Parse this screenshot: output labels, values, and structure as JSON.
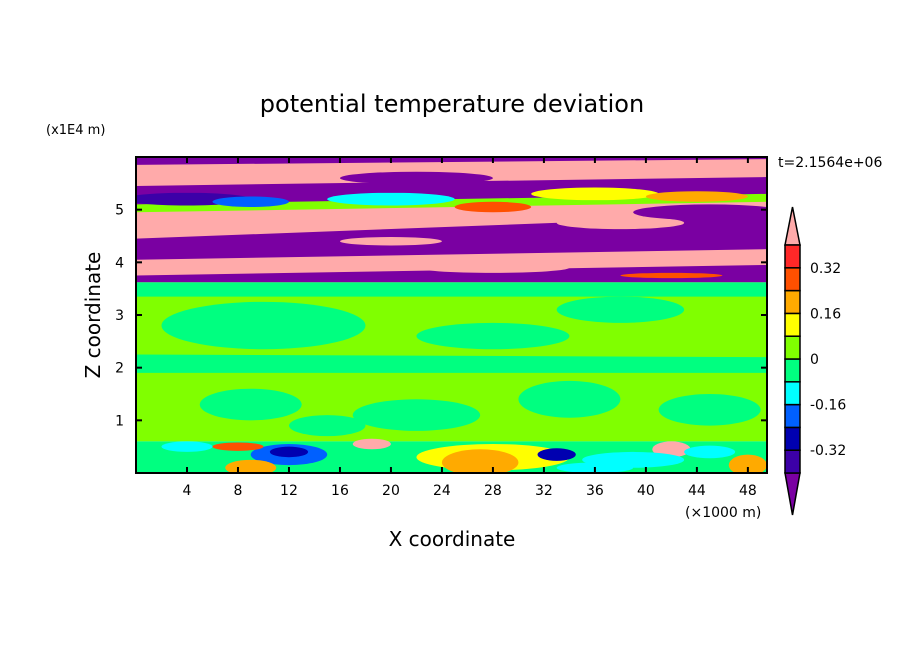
{
  "chart_data": {
    "type": "heatmap",
    "title": "potential temperature deviation",
    "xlabel": "X coordinate",
    "ylabel": "Z coordinate",
    "x_unit_label": "(×1000 m)",
    "y_unit_label": "(x1E4 m)",
    "time_label": "t=2.1564e+06",
    "xlim": [
      0,
      49.5
    ],
    "ylim": [
      0,
      6
    ],
    "xticks": [
      4,
      8,
      12,
      16,
      20,
      24,
      28,
      32,
      36,
      40,
      44,
      48
    ],
    "xtick_labels": [
      "4",
      "8",
      "12",
      "16",
      "20",
      "24",
      "28",
      "32",
      "36",
      "40",
      "44",
      "48"
    ],
    "yticks": [
      1,
      2,
      3,
      4,
      5
    ],
    "ytick_labels": [
      "1",
      "2",
      "3",
      "4",
      "5"
    ],
    "levels": [
      -0.4,
      -0.32,
      -0.24,
      -0.16,
      -0.08,
      0,
      0.08,
      0.16,
      0.24,
      0.32,
      0.4
    ],
    "level_colors": [
      "#7a00a2",
      "#3c00a8",
      "#0000b0",
      "#0060ff",
      "#00ffff",
      "#00ff80",
      "#80ff00",
      "#ffff00",
      "#ffaa00",
      "#ff5000",
      "#ff2828",
      "#ffaaaa"
    ],
    "colorbar_labels": [
      {
        "value": 0.32,
        "label": "0.32"
      },
      {
        "value": 0.16,
        "label": "0.16"
      },
      {
        "value": 0,
        "label": "0"
      },
      {
        "value": -0.16,
        "label": "-0.16"
      },
      {
        "value": -0.32,
        "label": "-0.32"
      }
    ],
    "bands": [
      {
        "name": "upper-layer-base",
        "z_left": [
          3.62,
          6.0
        ],
        "z_right": [
          3.62,
          6.0
        ],
        "value": -0.45
      },
      {
        "name": "pink-band-top",
        "z_left": [
          5.45,
          5.85
        ],
        "z_right": [
          5.62,
          5.96
        ],
        "value": 0.45
      },
      {
        "name": "mixed-band",
        "z_left": [
          4.9,
          5.1
        ],
        "z_right": [
          5.0,
          5.3
        ],
        "value": 0.05
      },
      {
        "name": "pink-band-mid",
        "z_left": [
          4.45,
          4.95
        ],
        "z_right": [
          4.9,
          5.15
        ],
        "value": 0.45
      },
      {
        "name": "pink-band-low",
        "z_left": [
          3.75,
          4.05
        ],
        "z_right": [
          3.95,
          4.25
        ],
        "value": 0.45
      },
      {
        "name": "middle-layer",
        "z_left": [
          0.6,
          3.62
        ],
        "z_right": [
          0.6,
          3.62
        ],
        "value": 0.04
      },
      {
        "name": "middle-top-strip",
        "z_left": [
          3.35,
          3.62
        ],
        "z_right": [
          3.35,
          3.62
        ],
        "value": -0.04
      },
      {
        "name": "middle-lower-strip",
        "z_left": [
          1.9,
          2.25
        ],
        "z_right": [
          1.9,
          2.2
        ],
        "value": -0.04
      },
      {
        "name": "bottom-layer",
        "z_left": [
          0,
          0.6
        ],
        "z_right": [
          0,
          0.6
        ],
        "value": -0.04
      }
    ],
    "patches": [
      {
        "x": 10,
        "z": 2.8,
        "rx": 8,
        "rz": 0.45,
        "value": -0.04
      },
      {
        "x": 28,
        "z": 2.6,
        "rx": 6,
        "rz": 0.25,
        "value": -0.04
      },
      {
        "x": 38,
        "z": 3.1,
        "rx": 5,
        "rz": 0.25,
        "value": -0.04
      },
      {
        "x": 9,
        "z": 1.3,
        "rx": 4,
        "rz": 0.3,
        "value": -0.04
      },
      {
        "x": 22,
        "z": 1.1,
        "rx": 5,
        "rz": 0.3,
        "value": -0.04
      },
      {
        "x": 34,
        "z": 1.4,
        "rx": 4,
        "rz": 0.35,
        "value": -0.04
      },
      {
        "x": 45,
        "z": 1.2,
        "rx": 4,
        "rz": 0.3,
        "value": -0.04
      },
      {
        "x": 15,
        "z": 0.9,
        "rx": 3,
        "rz": 0.2,
        "value": -0.04
      },
      {
        "x": 4,
        "z": 5.2,
        "rx": 5,
        "rz": 0.12,
        "value": -0.35
      },
      {
        "x": 9,
        "z": 5.15,
        "rx": 3,
        "rz": 0.1,
        "value": -0.2
      },
      {
        "x": 20,
        "z": 5.2,
        "rx": 5,
        "rz": 0.12,
        "value": -0.12
      },
      {
        "x": 28,
        "z": 5.05,
        "rx": 3,
        "rz": 0.1,
        "value": 0.28
      },
      {
        "x": 36,
        "z": 5.3,
        "rx": 5,
        "rz": 0.12,
        "value": 0.1
      },
      {
        "x": 44,
        "z": 5.25,
        "rx": 4,
        "rz": 0.1,
        "value": 0.2
      },
      {
        "x": 38,
        "z": 4.75,
        "rx": 5,
        "rz": 0.12,
        "value": 0.45
      },
      {
        "x": 45,
        "z": 4.95,
        "rx": 6,
        "rz": 0.15,
        "value": -0.45
      },
      {
        "x": 22,
        "z": 5.6,
        "rx": 6,
        "rz": 0.12,
        "value": -0.45
      },
      {
        "x": 28,
        "z": 3.9,
        "rx": 6,
        "rz": 0.1,
        "value": 0.45
      },
      {
        "x": 20,
        "z": 4.4,
        "rx": 4,
        "rz": 0.08,
        "value": 0.45
      },
      {
        "x": 42,
        "z": 3.75,
        "rx": 4,
        "rz": 0.05,
        "value": 0.3
      },
      {
        "x": 4,
        "z": 0.5,
        "rx": 2,
        "rz": 0.1,
        "value": -0.16
      },
      {
        "x": 12,
        "z": 0.35,
        "rx": 3,
        "rz": 0.2,
        "value": -0.2
      },
      {
        "x": 12,
        "z": 0.4,
        "rx": 1.5,
        "rz": 0.1,
        "value": -0.3
      },
      {
        "x": 28,
        "z": 0.3,
        "rx": 6,
        "rz": 0.25,
        "value": 0.1
      },
      {
        "x": 27,
        "z": 0.2,
        "rx": 3,
        "rz": 0.25,
        "value": 0.2
      },
      {
        "x": 9,
        "z": 0.1,
        "rx": 2,
        "rz": 0.15,
        "value": 0.2
      },
      {
        "x": 18.5,
        "z": 0.55,
        "rx": 1.5,
        "rz": 0.1,
        "value": 0.4
      },
      {
        "x": 8,
        "z": 0.5,
        "rx": 2,
        "rz": 0.08,
        "value": 0.3
      },
      {
        "x": 42,
        "z": 0.45,
        "rx": 1.5,
        "rz": 0.15,
        "value": 0.4
      },
      {
        "x": 48,
        "z": 0.15,
        "rx": 1.5,
        "rz": 0.2,
        "value": 0.2
      },
      {
        "x": 39,
        "z": 0.25,
        "rx": 4,
        "rz": 0.15,
        "value": -0.1
      },
      {
        "x": 33,
        "z": 0.35,
        "rx": 1.5,
        "rz": 0.12,
        "value": -0.3
      },
      {
        "x": 45,
        "z": 0.4,
        "rx": 2,
        "rz": 0.12,
        "value": -0.1
      },
      {
        "x": 36,
        "z": 0.1,
        "rx": 3,
        "rz": 0.1,
        "value": -0.1
      }
    ]
  }
}
